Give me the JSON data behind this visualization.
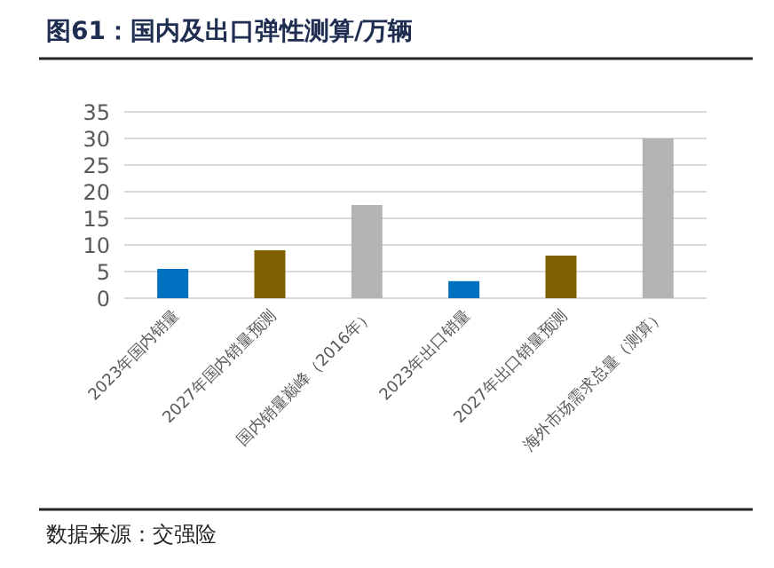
{
  "chart_data": {
    "type": "bar",
    "title": "图61：国内及出口弹性测算/万辆",
    "categories": [
      "2023年国内销量",
      "2027年国内销量预测",
      "国内销量巅峰（2016年）",
      "2023年出口销量",
      "2027年出口销量预测",
      "海外市场需求总量（测算）"
    ],
    "values": [
      5.5,
      9,
      17.5,
      3.2,
      8,
      30
    ],
    "colors": [
      "#0070c0",
      "#7f6000",
      "#b4b4b4",
      "#0070c0",
      "#7f6000",
      "#b4b4b4"
    ],
    "ylim": [
      0,
      35
    ],
    "yticks": [
      0,
      5,
      10,
      15,
      20,
      25,
      30,
      35
    ],
    "grid": "y",
    "annotations": [
      "数据来源：交强险"
    ]
  }
}
